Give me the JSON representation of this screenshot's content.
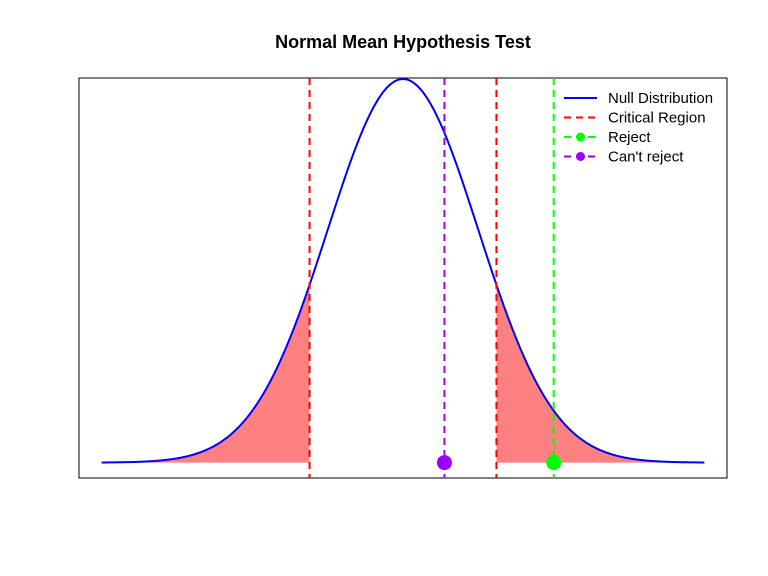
{
  "chart_data": {
    "type": "line",
    "title": "Normal Mean Hypothesis Test",
    "xlabel": "",
    "ylabel": "",
    "xlim": [
      -4.3,
      4.3
    ],
    "ylim": [
      -0.016,
      0.4
    ],
    "axes_visible": false,
    "grid": false,
    "legend_position": "top-right",
    "null_distribution": {
      "mean": 0,
      "sd": 1,
      "x_range": [
        -4,
        4
      ]
    },
    "critical_values": [
      -1.24,
      1.24
    ],
    "observations": [
      {
        "label": "Can't reject",
        "x": 0.55,
        "color": "#9900ff"
      },
      {
        "label": "Reject",
        "x": 2.0,
        "color": "#00ff00"
      }
    ],
    "colors": {
      "null_distribution": "#0000ff",
      "critical_region": "#ff0000",
      "critical_fill": "#ff8080"
    },
    "legend": [
      {
        "label": "Null Distribution",
        "style": "line",
        "color": "#0000ff"
      },
      {
        "label": "Critical Region",
        "style": "dashed",
        "color": "#ff0000"
      },
      {
        "label": "Reject",
        "style": "dashed-point",
        "color": "#00ff00"
      },
      {
        "label": "Can't reject",
        "style": "dashed-point",
        "color": "#9900ff"
      }
    ]
  }
}
